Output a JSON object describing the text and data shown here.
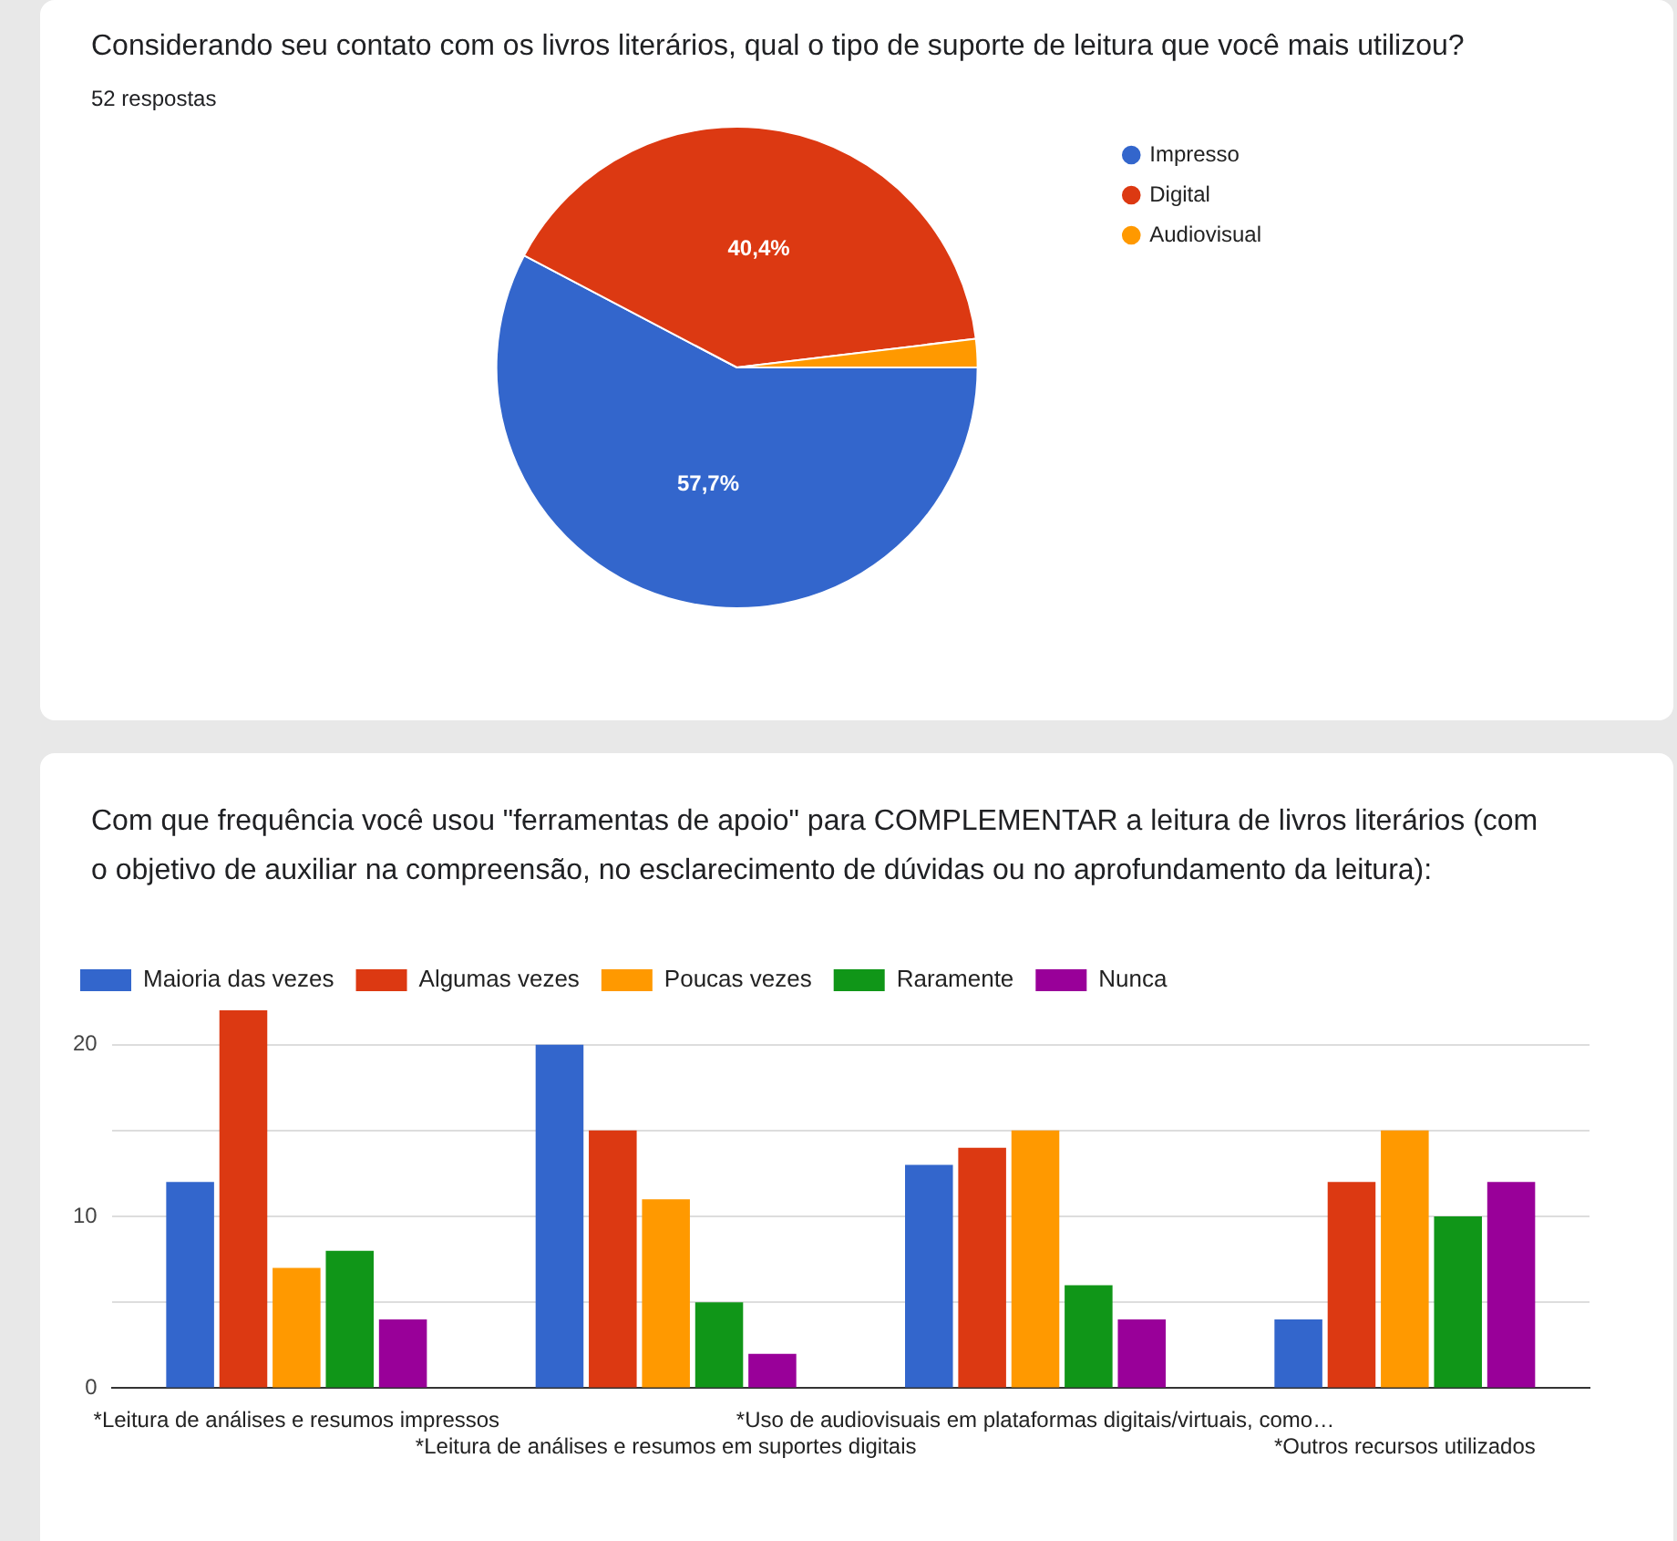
{
  "chart_data": [
    {
      "type": "pie",
      "title": "Considerando seu contato com os livros literários, qual o tipo de suporte de leitura que você mais utilizou?",
      "subtitle": "52 respostas",
      "categories": [
        "Impresso",
        "Digital",
        "Audiovisual"
      ],
      "values": [
        57.7,
        40.4,
        1.9
      ],
      "colors": [
        "#3366cc",
        "#dc3912",
        "#ff9900"
      ],
      "value_labels": [
        "57,7%",
        "40,4%",
        null
      ],
      "legend": "right"
    },
    {
      "type": "bar",
      "title": "Com que frequência você usou \"ferramentas de apoio\" para COMPLEMENTAR a leitura de livros literários (com o objetivo de auxiliar na compreensão, no esclarecimento de dúvidas ou no aprofundamento da leitura):",
      "categories": [
        "*Leitura de análises e resumos impressos",
        "*Leitura de análises e resumos em suportes digitais",
        "*Uso de audiovisuais em plataformas digitais/virtuais, como…",
        "*Outros recursos utilizados"
      ],
      "series": [
        {
          "name": "Maioria das vezes",
          "color": "#3366cc",
          "values": [
            12,
            20,
            13,
            4
          ]
        },
        {
          "name": "Algumas vezes",
          "color": "#dc3912",
          "values": [
            22,
            15,
            14,
            12
          ]
        },
        {
          "name": "Poucas vezes",
          "color": "#ff9900",
          "values": [
            7,
            11,
            15,
            15
          ]
        },
        {
          "name": "Raramente",
          "color": "#109618",
          "values": [
            8,
            5,
            6,
            10
          ]
        },
        {
          "name": "Nunca",
          "color": "#990099",
          "values": [
            4,
            2,
            4,
            12
          ]
        }
      ],
      "ylim": [
        0,
        22
      ],
      "yticks": [
        0,
        {
          "value": 5,
          "label": null
        },
        10,
        {
          "value": 15,
          "label": null
        },
        20
      ],
      "grid": "y",
      "legend": "top"
    }
  ]
}
